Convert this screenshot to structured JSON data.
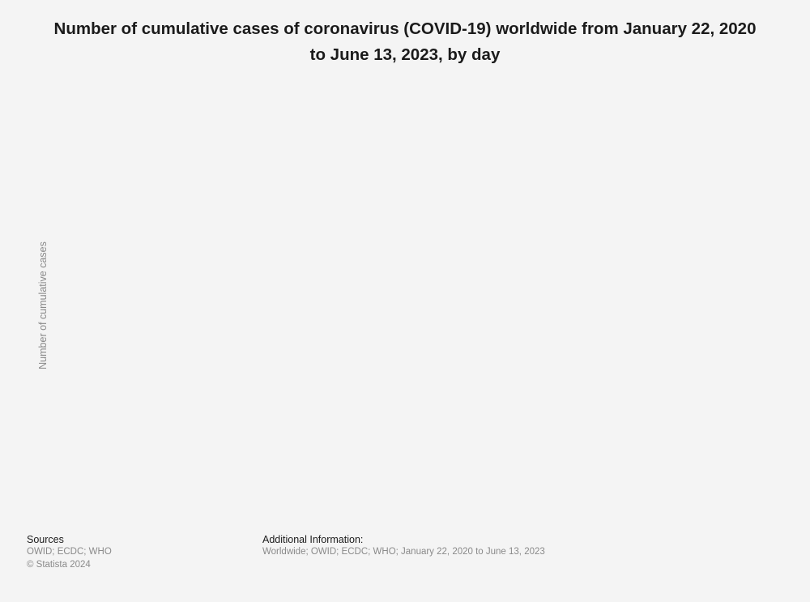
{
  "chart_data": {
    "type": "line",
    "title": "Number of cumulative cases of coronavirus (COVID-19) worldwide from January 22, 2020 to June 13, 2023, by day",
    "xlabel": "",
    "ylabel": "Number of cumulative cases",
    "series": [],
    "grid": false
  },
  "footer": {
    "sources_heading": "Sources",
    "sources_text": "OWID; ECDC; WHO",
    "copyright": "© Statista 2024",
    "additional_heading": "Additional Information:",
    "additional_text": "Worldwide; OWID; ECDC; WHO; January 22, 2020 to June 13, 2023"
  }
}
